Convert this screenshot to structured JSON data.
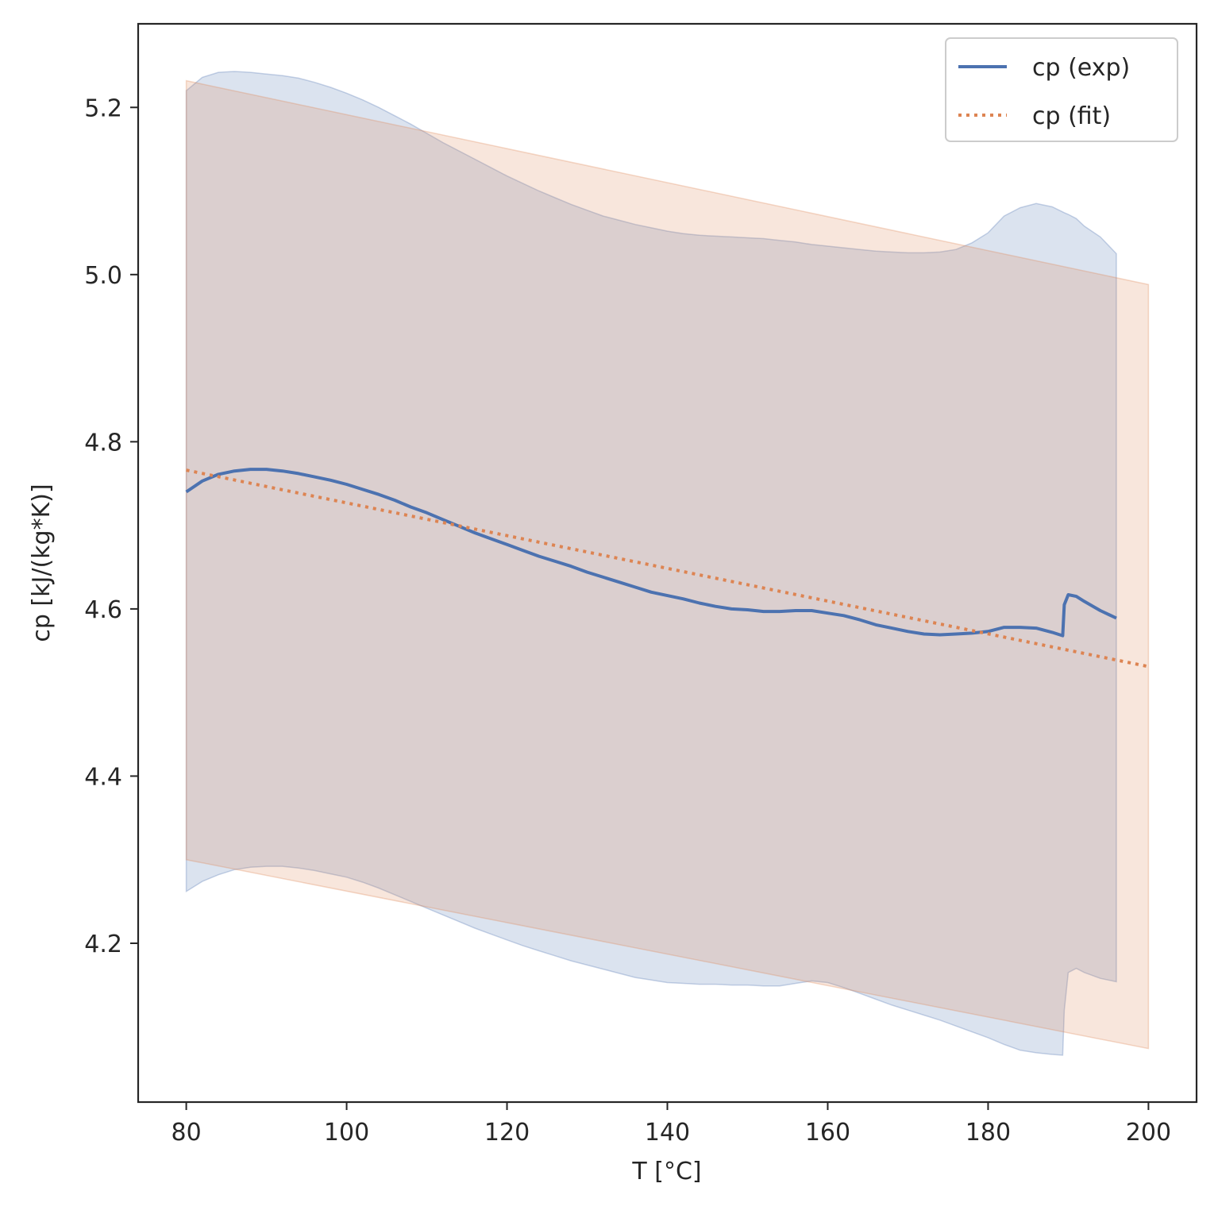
{
  "chart_data": {
    "type": "line",
    "title": "",
    "xlabel": "T [°C]",
    "ylabel": "cp [kJ/(kg*K)]",
    "xlim": [
      74,
      206
    ],
    "ylim": [
      4.01,
      5.3
    ],
    "xticks": [
      80,
      100,
      120,
      140,
      160,
      180,
      200
    ],
    "yticks": [
      4.2,
      4.4,
      4.6,
      4.8,
      5.0,
      5.2
    ],
    "grid": false,
    "legend_position": "top-right",
    "series": [
      {
        "name": "cp (exp)",
        "style": "solid",
        "color": "#4c72b0",
        "x": [
          80,
          82,
          84,
          86,
          88,
          90,
          92,
          94,
          96,
          98,
          100,
          102,
          104,
          106,
          108,
          110,
          112,
          114,
          116,
          118,
          120,
          122,
          124,
          126,
          128,
          130,
          132,
          134,
          136,
          138,
          140,
          142,
          144,
          146,
          148,
          150,
          152,
          154,
          156,
          158,
          160,
          162,
          164,
          166,
          168,
          170,
          172,
          174,
          176,
          178,
          180,
          182,
          184,
          186,
          188,
          189.3,
          189.5,
          190,
          191,
          192,
          194,
          196
        ],
        "y": [
          4.74,
          4.753,
          4.761,
          4.765,
          4.767,
          4.767,
          4.765,
          4.762,
          4.758,
          4.754,
          4.749,
          4.743,
          4.737,
          4.73,
          4.722,
          4.715,
          4.707,
          4.699,
          4.691,
          4.684,
          4.677,
          4.67,
          4.663,
          4.657,
          4.651,
          4.644,
          4.638,
          4.632,
          4.626,
          4.62,
          4.616,
          4.612,
          4.607,
          4.603,
          4.6,
          4.599,
          4.597,
          4.597,
          4.598,
          4.598,
          4.595,
          4.592,
          4.587,
          4.581,
          4.577,
          4.573,
          4.57,
          4.569,
          4.57,
          4.571,
          4.573,
          4.578,
          4.578,
          4.577,
          4.572,
          4.568,
          4.605,
          4.617,
          4.615,
          4.609,
          4.598,
          4.589
        ],
        "band_upper": [
          5.22,
          5.236,
          5.242,
          5.243,
          5.242,
          5.24,
          5.238,
          5.235,
          5.23,
          5.224,
          5.217,
          5.209,
          5.2,
          5.19,
          5.18,
          5.169,
          5.158,
          5.148,
          5.138,
          5.128,
          5.118,
          5.109,
          5.1,
          5.092,
          5.084,
          5.077,
          5.07,
          5.065,
          5.06,
          5.056,
          5.052,
          5.049,
          5.047,
          5.046,
          5.045,
          5.044,
          5.043,
          5.041,
          5.039,
          5.036,
          5.034,
          5.032,
          5.03,
          5.028,
          5.027,
          5.026,
          5.026,
          5.027,
          5.03,
          5.038,
          5.05,
          5.07,
          5.08,
          5.085,
          5.081,
          5.075,
          5.074,
          5.072,
          5.067,
          5.058,
          5.045,
          5.025
        ],
        "band_lower": [
          4.262,
          4.274,
          4.282,
          4.288,
          4.291,
          4.292,
          4.292,
          4.29,
          4.287,
          4.283,
          4.279,
          4.273,
          4.266,
          4.258,
          4.25,
          4.242,
          4.234,
          4.226,
          4.218,
          4.211,
          4.204,
          4.197,
          4.191,
          4.185,
          4.179,
          4.174,
          4.169,
          4.164,
          4.159,
          4.156,
          4.153,
          4.152,
          4.151,
          4.151,
          4.15,
          4.15,
          4.149,
          4.149,
          4.152,
          4.155,
          4.153,
          4.147,
          4.14,
          4.133,
          4.126,
          4.12,
          4.114,
          4.108,
          4.101,
          4.094,
          4.087,
          4.079,
          4.072,
          4.069,
          4.067,
          4.066,
          4.12,
          4.165,
          4.17,
          4.165,
          4.158,
          4.154
        ]
      },
      {
        "name": "cp (fit)",
        "style": "dotted",
        "color": "#dd8452",
        "x": [
          80,
          200
        ],
        "y": [
          4.766,
          4.531
        ],
        "band_upper": [
          5.232,
          4.988
        ],
        "band_lower": [
          4.3,
          4.074
        ]
      }
    ]
  }
}
